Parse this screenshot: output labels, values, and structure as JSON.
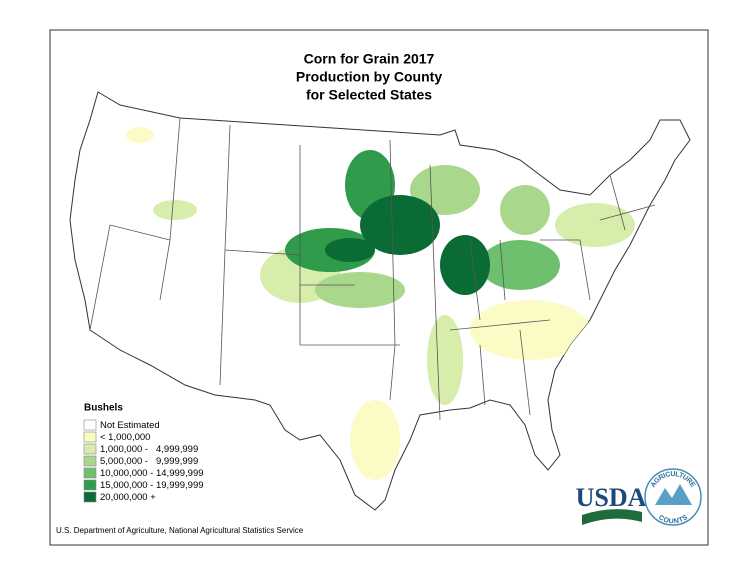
{
  "title": [
    "Corn for Grain 2017",
    "Production by County",
    "for Selected States"
  ],
  "legend": {
    "title": "Bushels",
    "items": [
      {
        "label": "Not Estimated",
        "color": "#ffffff"
      },
      {
        "label": "< 1,000,000",
        "color": "#fbfbc6"
      },
      {
        "label": "1,000,000 -   4,999,999",
        "color": "#d7edab"
      },
      {
        "label": "5,000,000 -   9,999,999",
        "color": "#a9d78b"
      },
      {
        "label": "10,000,000 - 14,999,999",
        "color": "#6ec06e"
      },
      {
        "label": "15,000,000 - 19,999,999",
        "color": "#2f9b4b"
      },
      {
        "label": "20,000,000 +",
        "color": "#0b6b35"
      }
    ]
  },
  "source": "U.S. Department of Agriculture, National Agricultural Statistics Service",
  "logo": {
    "name": "USDA",
    "ring_top": "AGRICULTURE",
    "ring_bottom": "COUNTS"
  }
}
